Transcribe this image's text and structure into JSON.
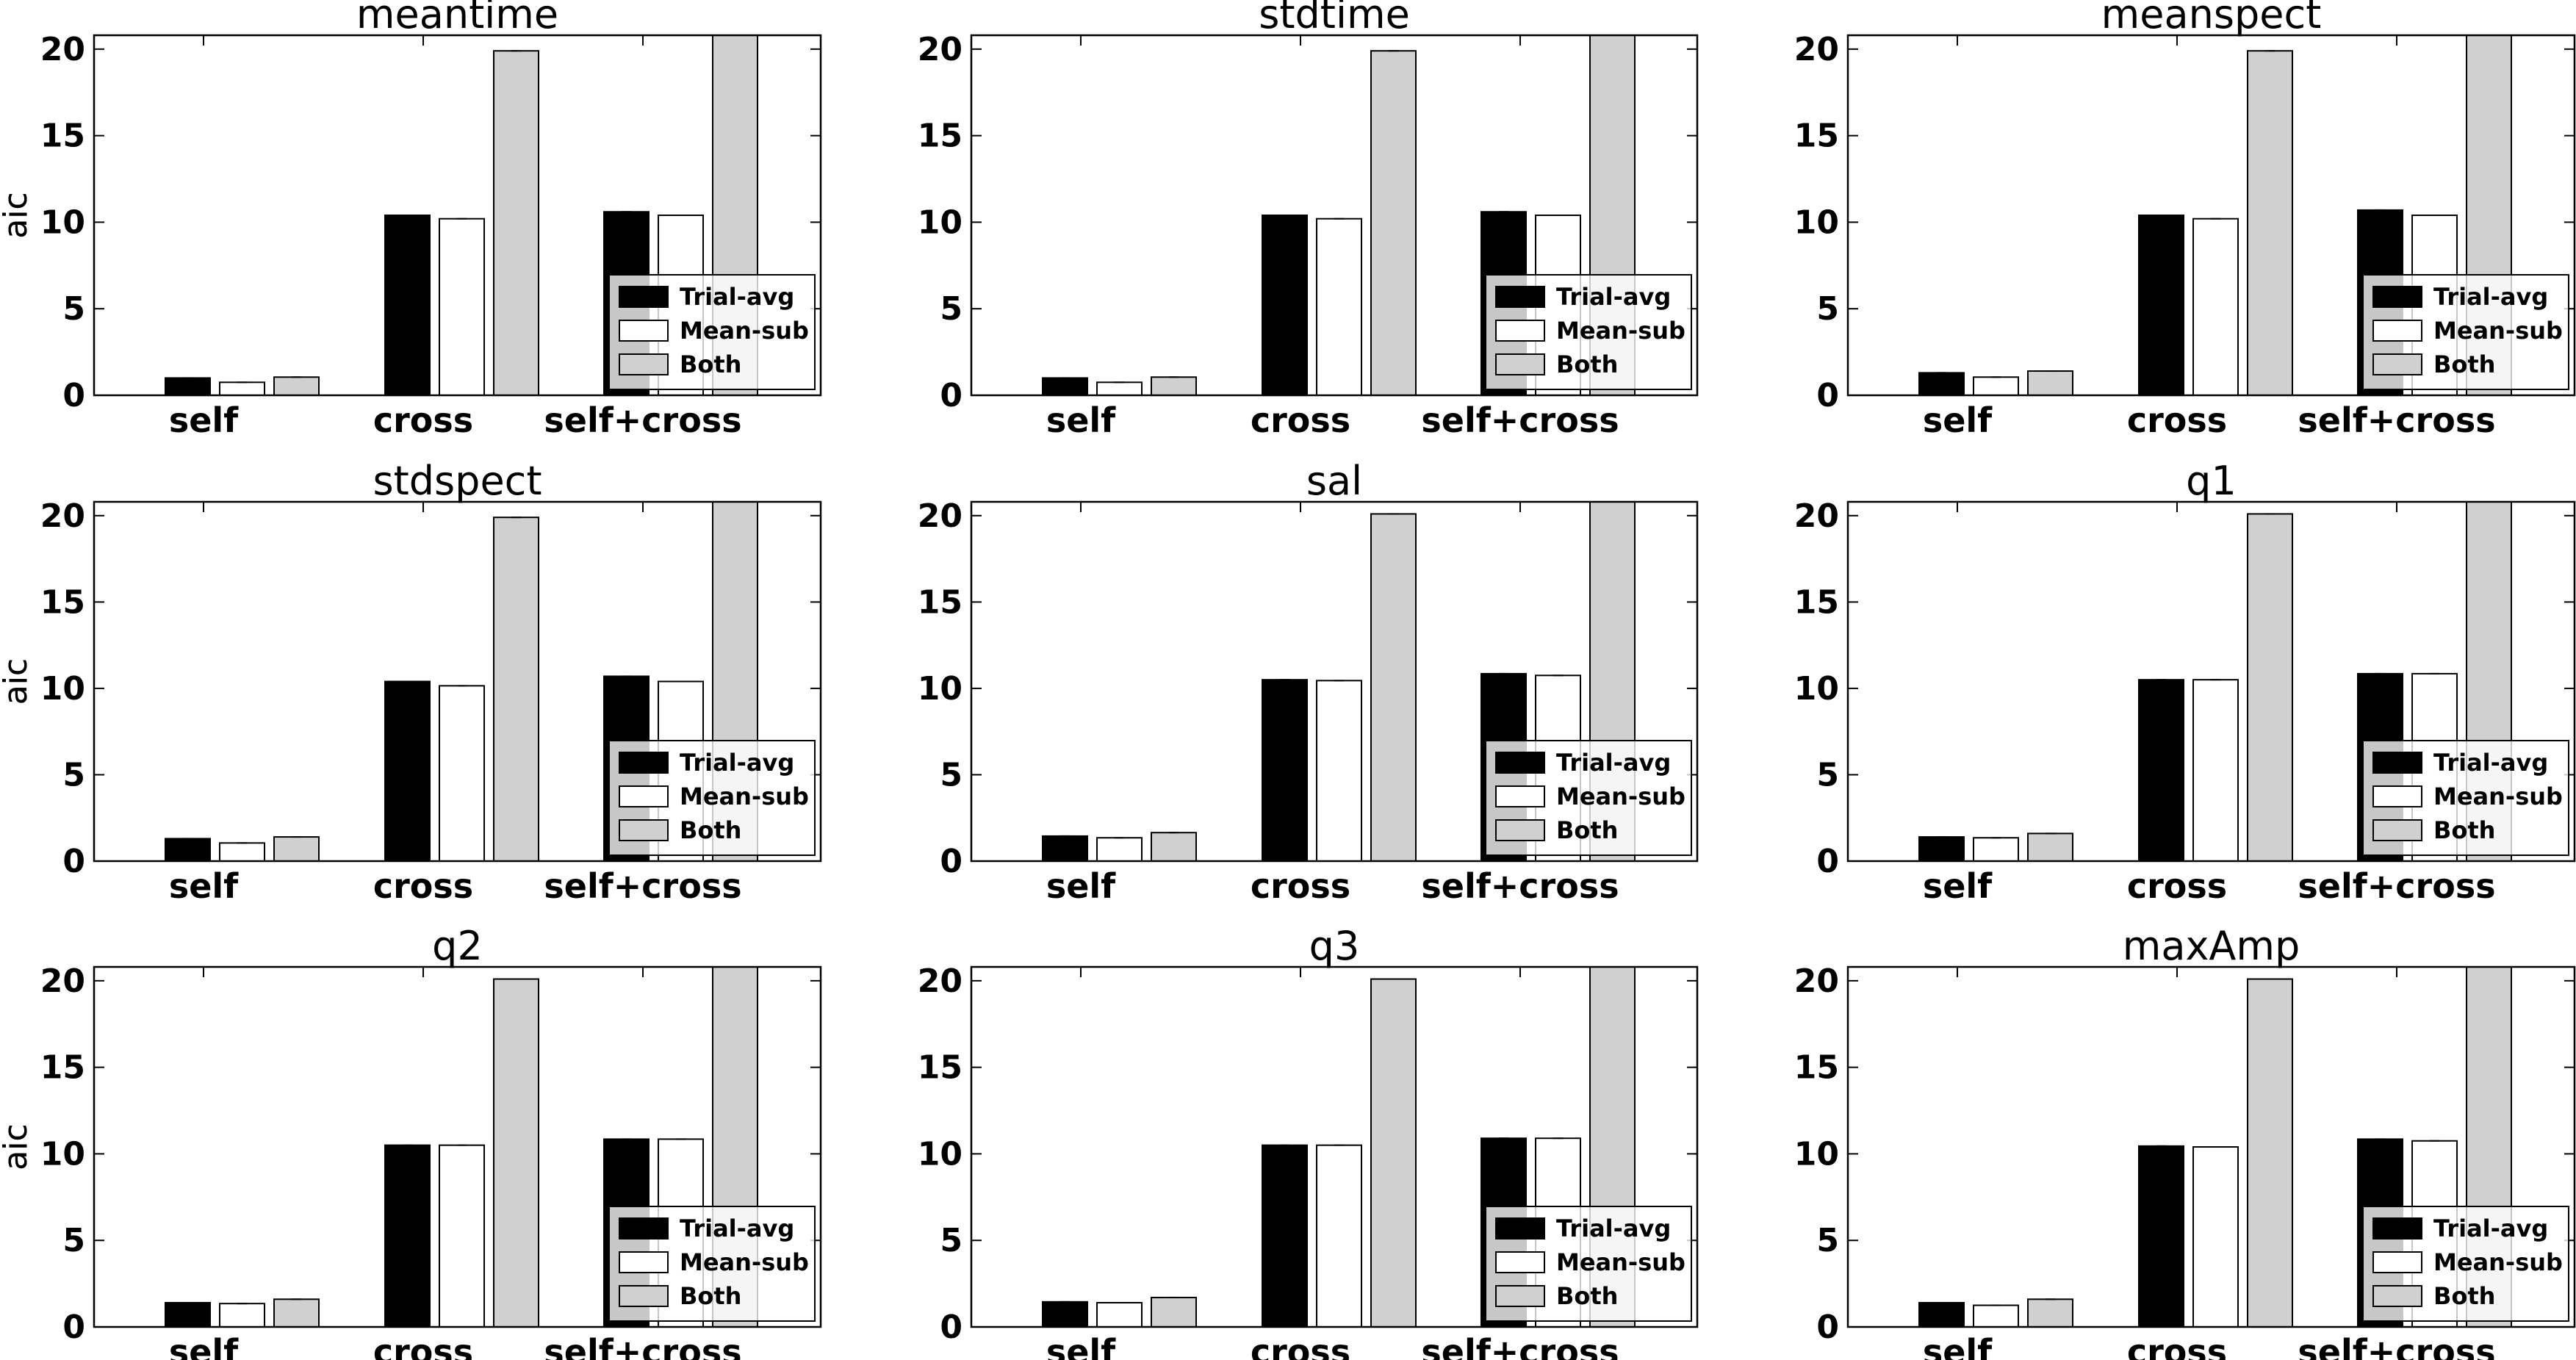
{
  "chart_data": [
    {
      "type": "bar",
      "title": "meantime",
      "ylabel": "aic",
      "xlabel": "",
      "ylim": [
        0,
        20.8
      ],
      "yticks": [
        0,
        5,
        10,
        15,
        20
      ],
      "categories": [
        "self",
        "cross",
        "self+cross"
      ],
      "series": [
        {
          "name": "Trial-avg",
          "color": "#000000",
          "values": [
            1.0,
            10.4,
            10.6
          ]
        },
        {
          "name": "Mean-sub",
          "color": "#ffffff",
          "values": [
            0.75,
            10.2,
            10.4
          ]
        },
        {
          "name": "Both",
          "color": "#d0d0d0",
          "values": [
            1.05,
            19.9,
            20.8
          ]
        }
      ],
      "legend": "lower-right",
      "grid": false
    },
    {
      "type": "bar",
      "title": "stdtime",
      "ylabel": "aic",
      "xlabel": "",
      "ylim": [
        0,
        20.8
      ],
      "yticks": [
        0,
        5,
        10,
        15,
        20
      ],
      "categories": [
        "self",
        "cross",
        "self+cross"
      ],
      "series": [
        {
          "name": "Trial-avg",
          "color": "#000000",
          "values": [
            1.0,
            10.4,
            10.6
          ]
        },
        {
          "name": "Mean-sub",
          "color": "#ffffff",
          "values": [
            0.75,
            10.2,
            10.4
          ]
        },
        {
          "name": "Both",
          "color": "#d0d0d0",
          "values": [
            1.05,
            19.9,
            20.8
          ]
        }
      ],
      "legend": "lower-right",
      "grid": false
    },
    {
      "type": "bar",
      "title": "meanspect",
      "ylabel": "aic",
      "xlabel": "",
      "ylim": [
        0,
        20.8
      ],
      "yticks": [
        0,
        5,
        10,
        15,
        20
      ],
      "categories": [
        "self",
        "cross",
        "self+cross"
      ],
      "series": [
        {
          "name": "Trial-avg",
          "color": "#000000",
          "values": [
            1.3,
            10.4,
            10.7
          ]
        },
        {
          "name": "Mean-sub",
          "color": "#ffffff",
          "values": [
            1.05,
            10.2,
            10.4
          ]
        },
        {
          "name": "Both",
          "color": "#d0d0d0",
          "values": [
            1.4,
            19.9,
            20.8
          ]
        }
      ],
      "legend": "lower-right",
      "grid": false
    },
    {
      "type": "bar",
      "title": "stdspect",
      "ylabel": "aic",
      "xlabel": "",
      "ylim": [
        0,
        20.8
      ],
      "yticks": [
        0,
        5,
        10,
        15,
        20
      ],
      "categories": [
        "self",
        "cross",
        "self+cross"
      ],
      "series": [
        {
          "name": "Trial-avg",
          "color": "#000000",
          "values": [
            1.3,
            10.4,
            10.7
          ]
        },
        {
          "name": "Mean-sub",
          "color": "#ffffff",
          "values": [
            1.05,
            10.15,
            10.4
          ]
        },
        {
          "name": "Both",
          "color": "#d0d0d0",
          "values": [
            1.4,
            19.9,
            20.8
          ]
        }
      ],
      "legend": "lower-right",
      "grid": false
    },
    {
      "type": "bar",
      "title": "sal",
      "ylabel": "aic",
      "xlabel": "",
      "ylim": [
        0,
        20.8
      ],
      "yticks": [
        0,
        5,
        10,
        15,
        20
      ],
      "categories": [
        "self",
        "cross",
        "self+cross"
      ],
      "series": [
        {
          "name": "Trial-avg",
          "color": "#000000",
          "values": [
            1.45,
            10.5,
            10.85
          ]
        },
        {
          "name": "Mean-sub",
          "color": "#ffffff",
          "values": [
            1.35,
            10.45,
            10.75
          ]
        },
        {
          "name": "Both",
          "color": "#d0d0d0",
          "values": [
            1.65,
            20.1,
            20.8
          ]
        }
      ],
      "legend": "lower-right",
      "grid": false
    },
    {
      "type": "bar",
      "title": "q1",
      "ylabel": "aic",
      "xlabel": "",
      "ylim": [
        0,
        20.8
      ],
      "yticks": [
        0,
        5,
        10,
        15,
        20
      ],
      "categories": [
        "self",
        "cross",
        "self+cross"
      ],
      "series": [
        {
          "name": "Trial-avg",
          "color": "#000000",
          "values": [
            1.4,
            10.5,
            10.85
          ]
        },
        {
          "name": "Mean-sub",
          "color": "#ffffff",
          "values": [
            1.35,
            10.5,
            10.85
          ]
        },
        {
          "name": "Both",
          "color": "#d0d0d0",
          "values": [
            1.6,
            20.1,
            20.8
          ]
        }
      ],
      "legend": "lower-right",
      "grid": false
    },
    {
      "type": "bar",
      "title": "q2",
      "ylabel": "aic",
      "xlabel": "",
      "ylim": [
        0,
        20.8
      ],
      "yticks": [
        0,
        5,
        10,
        15,
        20
      ],
      "categories": [
        "self",
        "cross",
        "self+cross"
      ],
      "series": [
        {
          "name": "Trial-avg",
          "color": "#000000",
          "values": [
            1.4,
            10.5,
            10.85
          ]
        },
        {
          "name": "Mean-sub",
          "color": "#ffffff",
          "values": [
            1.35,
            10.5,
            10.85
          ]
        },
        {
          "name": "Both",
          "color": "#d0d0d0",
          "values": [
            1.6,
            20.1,
            20.8
          ]
        }
      ],
      "legend": "lower-right",
      "grid": false
    },
    {
      "type": "bar",
      "title": "q3",
      "ylabel": "aic",
      "xlabel": "",
      "ylim": [
        0,
        20.8
      ],
      "yticks": [
        0,
        5,
        10,
        15,
        20
      ],
      "categories": [
        "self",
        "cross",
        "self+cross"
      ],
      "series": [
        {
          "name": "Trial-avg",
          "color": "#000000",
          "values": [
            1.45,
            10.5,
            10.9
          ]
        },
        {
          "name": "Mean-sub",
          "color": "#ffffff",
          "values": [
            1.4,
            10.5,
            10.9
          ]
        },
        {
          "name": "Both",
          "color": "#d0d0d0",
          "values": [
            1.7,
            20.1,
            20.8
          ]
        }
      ],
      "legend": "lower-right",
      "grid": false
    },
    {
      "type": "bar",
      "title": "maxAmp",
      "ylabel": "aic",
      "xlabel": "",
      "ylim": [
        0,
        20.8
      ],
      "yticks": [
        0,
        5,
        10,
        15,
        20
      ],
      "categories": [
        "self",
        "cross",
        "self+cross"
      ],
      "series": [
        {
          "name": "Trial-avg",
          "color": "#000000",
          "values": [
            1.4,
            10.45,
            10.85
          ]
        },
        {
          "name": "Mean-sub",
          "color": "#ffffff",
          "values": [
            1.25,
            10.4,
            10.75
          ]
        },
        {
          "name": "Both",
          "color": "#d0d0d0",
          "values": [
            1.6,
            20.1,
            20.8
          ]
        }
      ],
      "legend": "lower-right",
      "grid": false
    }
  ]
}
